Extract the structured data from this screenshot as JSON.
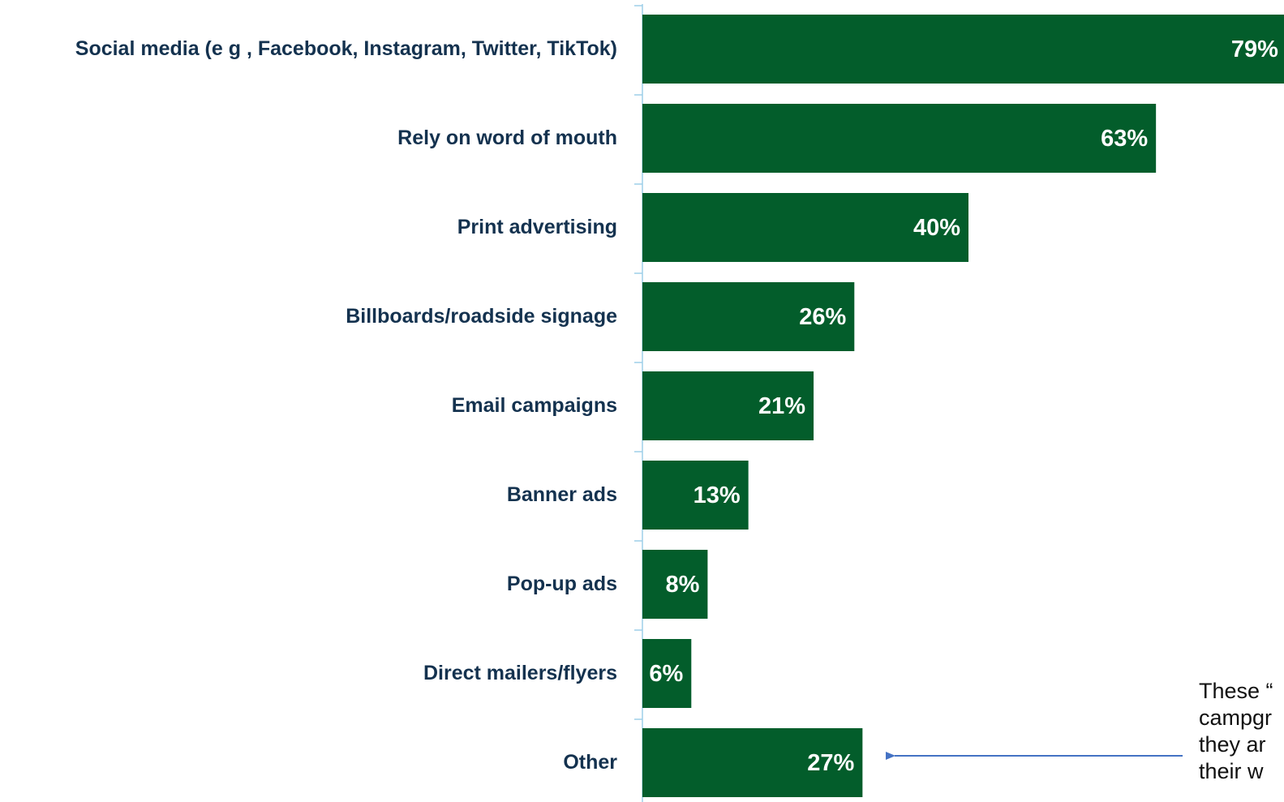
{
  "chart_data": {
    "type": "bar",
    "orientation": "horizontal",
    "categories": [
      "Social media (e g , Facebook, Instagram, Twitter, TikTok)",
      "Rely on word of mouth",
      "Print advertising",
      "Billboards/roadside signage",
      "Email campaigns",
      "Banner ads",
      "Pop-up ads",
      "Direct mailers/flyers",
      "Other"
    ],
    "values": [
      79,
      63,
      40,
      26,
      21,
      13,
      8,
      6,
      27
    ],
    "data_labels": [
      "79%",
      "63%",
      "40%",
      "26%",
      "21%",
      "13%",
      "8%",
      "6%",
      "27%"
    ],
    "bar_color": "#035d2b",
    "label_color": "#14324f",
    "xlim": [
      0,
      80
    ],
    "grid": false,
    "legend": "none",
    "annotation": {
      "lines": [
        "These “",
        "campgr",
        "they ar",
        "their w"
      ],
      "points_to": "Other"
    }
  }
}
